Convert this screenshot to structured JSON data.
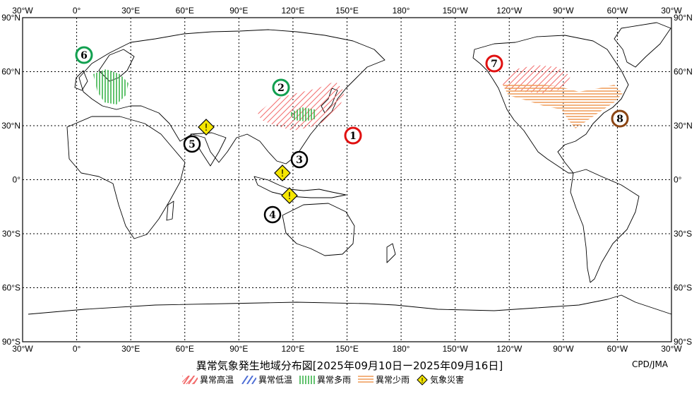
{
  "map": {
    "title": "異常気象発生地域分布図[2025年09月10日ー2025年09月16日]",
    "credit": "CPD/JMA",
    "lon_labels": [
      "30°W",
      "0°",
      "30°E",
      "60°E",
      "90°E",
      "120°E",
      "150°E",
      "180°",
      "150°W",
      "120°W",
      "90°W",
      "60°W",
      "30°W"
    ],
    "lat_labels": [
      "90°N",
      "60°N",
      "30°N",
      "0°",
      "30°S",
      "60°S",
      "90°S"
    ]
  },
  "legend": [
    {
      "key": "hot",
      "label": "異常高温",
      "color": "#f26b6b"
    },
    {
      "key": "cold",
      "label": "異常低温",
      "color": "#4f6fd6"
    },
    {
      "key": "wet",
      "label": "異常多雨",
      "color": "#3cb44b"
    },
    {
      "key": "dry",
      "label": "異常少雨",
      "color": "#f0a060"
    },
    {
      "key": "disaster",
      "label": "気象災害",
      "color": "#f5e600"
    }
  ],
  "markers": [
    {
      "n": "1",
      "type": "hot",
      "color": "#e01010"
    },
    {
      "n": "2",
      "type": "wet",
      "color": "#12a050"
    },
    {
      "n": "3",
      "type": "disaster",
      "color": "#000000"
    },
    {
      "n": "4",
      "type": "disaster",
      "color": "#000000"
    },
    {
      "n": "5",
      "type": "disaster",
      "color": "#000000"
    },
    {
      "n": "6",
      "type": "wet",
      "color": "#12a050"
    },
    {
      "n": "7",
      "type": "hot",
      "color": "#e01010"
    },
    {
      "n": "8",
      "type": "dry",
      "color": "#8b4513"
    }
  ]
}
